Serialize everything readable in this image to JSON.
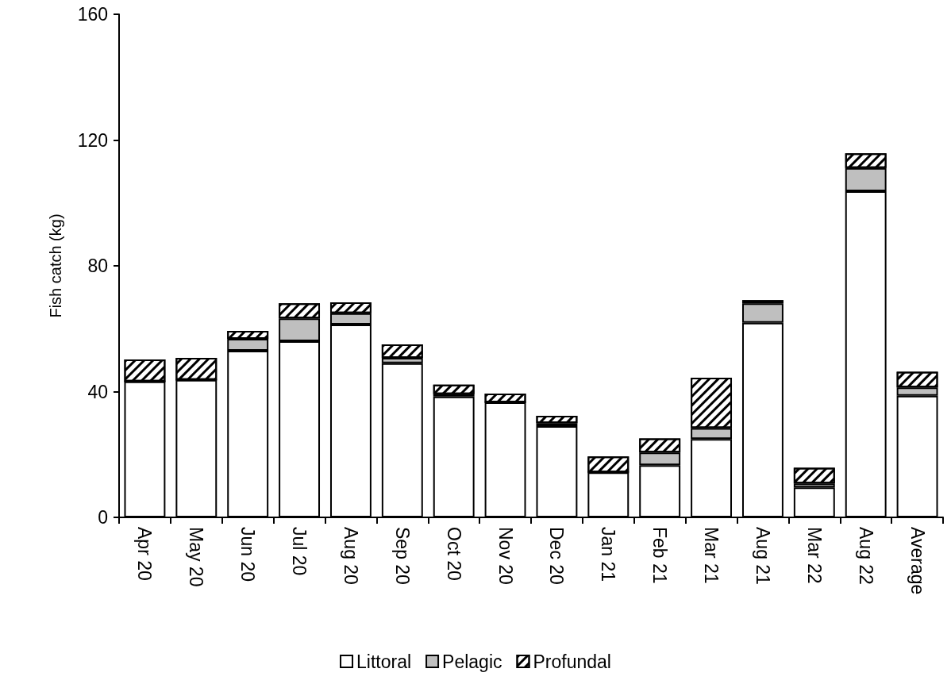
{
  "chart_data": {
    "type": "bar",
    "ylabel": "Fish catch (kg)",
    "stacked": true,
    "legend": "bottom",
    "grid": false,
    "categories": [
      "Apr 20",
      "May 20",
      "Jun 20",
      "Jul 20",
      "Aug 20",
      "Sep 20",
      "Oct 20",
      "Nov 20",
      "Dec 20",
      "Jan 21",
      "Feb 21",
      "Mar 21",
      "Aug 21",
      "Mar 22",
      "Aug 22",
      "Average"
    ],
    "ylim": [
      0,
      160
    ],
    "yticks": [
      0,
      40,
      80,
      120,
      160
    ],
    "series": [
      {
        "name": "Littoral",
        "color": "#ffffff",
        "values": [
          43.2,
          43.7,
          53,
          56,
          61.3,
          49,
          38.4,
          36.6,
          29,
          14.3,
          16.6,
          24.9,
          61.9,
          9.5,
          103.7,
          38.7
        ]
      },
      {
        "name": "Pelagic",
        "color": "#bfbfbf",
        "values": [
          0,
          0,
          3.8,
          7.3,
          3.6,
          1.7,
          0.8,
          0,
          1,
          0,
          4,
          3.5,
          6.2,
          1.3,
          7.4,
          2.6
        ]
      },
      {
        "name": "Profundal",
        "color": "#000000",
        "values": [
          7,
          7,
          2.5,
          4.8,
          3.5,
          4.3,
          3,
          2.8,
          2.3,
          5.1,
          4.5,
          16,
          1,
          5,
          4.7,
          5
        ]
      }
    ]
  }
}
